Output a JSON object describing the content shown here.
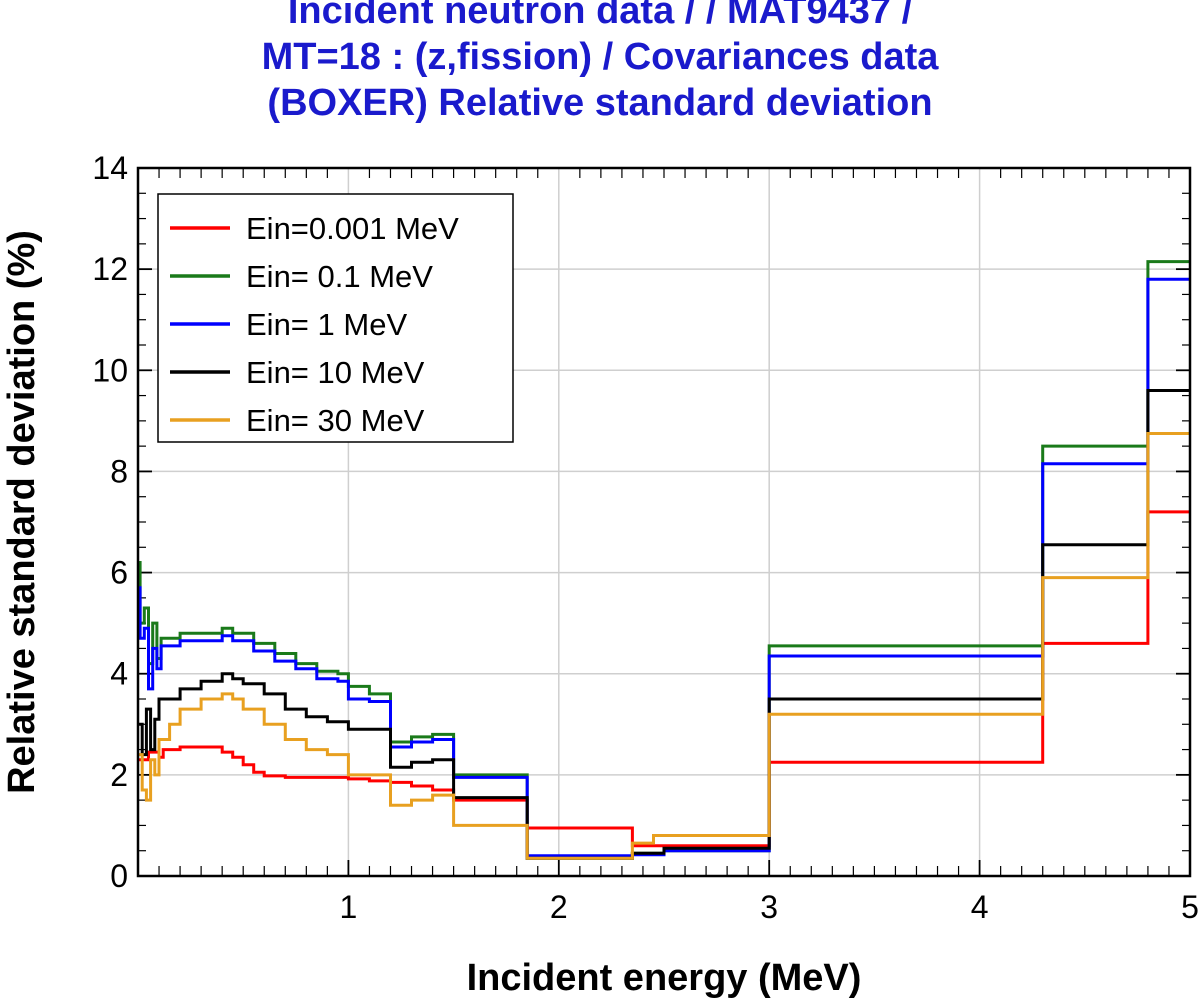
{
  "title_lines": [
    "Incident neutron data / / MAT9437 /",
    "MT=18 : (z,fission) / Covariances data",
    "(BOXER) Relative standard deviation"
  ],
  "colors": {
    "title": "#1a1acc",
    "grid": "#cfcfcf",
    "axis": "#000000"
  },
  "chart_data": {
    "type": "line",
    "title": "Incident neutron data / / MAT9437 / MT=18 : (z,fission) / Covariances data (BOXER) Relative standard deviation",
    "xlabel": "Incident energy (MeV)",
    "ylabel": "Relative standard deviation (%)",
    "xlim": [
      0,
      5
    ],
    "ylim": [
      0,
      14
    ],
    "xticks": [
      1,
      2,
      3,
      4,
      5
    ],
    "yticks": [
      0,
      2,
      4,
      6,
      8,
      10,
      12,
      14
    ],
    "grid": true,
    "legend_position": "top-left",
    "series": [
      {
        "name": "Ein=0.001 MeV",
        "color": "#ff0000",
        "points": [
          [
            0,
            2.3
          ],
          [
            0.05,
            2.3
          ],
          [
            0.05,
            2.45
          ],
          [
            0.1,
            2.45
          ],
          [
            0.1,
            2.35
          ],
          [
            0.12,
            2.35
          ],
          [
            0.12,
            2.5
          ],
          [
            0.2,
            2.5
          ],
          [
            0.2,
            2.55
          ],
          [
            0.4,
            2.55
          ],
          [
            0.4,
            2.45
          ],
          [
            0.45,
            2.45
          ],
          [
            0.45,
            2.35
          ],
          [
            0.5,
            2.35
          ],
          [
            0.5,
            2.2
          ],
          [
            0.55,
            2.2
          ],
          [
            0.55,
            2.05
          ],
          [
            0.6,
            2.05
          ],
          [
            0.6,
            1.98
          ],
          [
            0.7,
            1.98
          ],
          [
            0.7,
            1.95
          ],
          [
            1.0,
            1.95
          ],
          [
            1.0,
            1.92
          ],
          [
            1.1,
            1.92
          ],
          [
            1.1,
            1.88
          ],
          [
            1.2,
            1.88
          ],
          [
            1.2,
            1.85
          ],
          [
            1.3,
            1.85
          ],
          [
            1.3,
            1.78
          ],
          [
            1.4,
            1.78
          ],
          [
            1.4,
            1.7
          ],
          [
            1.5,
            1.7
          ],
          [
            1.5,
            1.5
          ],
          [
            1.85,
            1.5
          ],
          [
            1.85,
            0.95
          ],
          [
            2.35,
            0.95
          ],
          [
            2.35,
            0.6
          ],
          [
            3.0,
            0.6
          ],
          [
            3.0,
            2.25
          ],
          [
            4.3,
            2.25
          ],
          [
            4.3,
            4.6
          ],
          [
            4.8,
            4.6
          ],
          [
            4.8,
            7.2
          ],
          [
            5.0,
            7.2
          ]
        ]
      },
      {
        "name": "Ein= 0.1 MeV",
        "color": "#1a7a1a",
        "points": [
          [
            0,
            6.2
          ],
          [
            0.01,
            6.2
          ],
          [
            0.01,
            5.0
          ],
          [
            0.03,
            5.0
          ],
          [
            0.03,
            5.3
          ],
          [
            0.05,
            5.3
          ],
          [
            0.05,
            4.2
          ],
          [
            0.07,
            4.2
          ],
          [
            0.07,
            5.0
          ],
          [
            0.09,
            5.0
          ],
          [
            0.09,
            4.3
          ],
          [
            0.11,
            4.3
          ],
          [
            0.11,
            4.7
          ],
          [
            0.2,
            4.7
          ],
          [
            0.2,
            4.8
          ],
          [
            0.4,
            4.8
          ],
          [
            0.4,
            4.9
          ],
          [
            0.45,
            4.9
          ],
          [
            0.45,
            4.8
          ],
          [
            0.55,
            4.8
          ],
          [
            0.55,
            4.6
          ],
          [
            0.65,
            4.6
          ],
          [
            0.65,
            4.4
          ],
          [
            0.75,
            4.4
          ],
          [
            0.75,
            4.2
          ],
          [
            0.85,
            4.2
          ],
          [
            0.85,
            4.05
          ],
          [
            0.95,
            4.05
          ],
          [
            0.95,
            4.0
          ],
          [
            1.0,
            4.0
          ],
          [
            1.0,
            3.75
          ],
          [
            1.1,
            3.75
          ],
          [
            1.1,
            3.6
          ],
          [
            1.2,
            3.6
          ],
          [
            1.2,
            2.65
          ],
          [
            1.3,
            2.65
          ],
          [
            1.3,
            2.75
          ],
          [
            1.4,
            2.75
          ],
          [
            1.4,
            2.8
          ],
          [
            1.5,
            2.8
          ],
          [
            1.5,
            2.0
          ],
          [
            1.85,
            2.0
          ],
          [
            1.85,
            0.35
          ],
          [
            2.35,
            0.35
          ],
          [
            2.35,
            0.45
          ],
          [
            2.5,
            0.45
          ],
          [
            2.5,
            0.5
          ],
          [
            3.0,
            0.5
          ],
          [
            3.0,
            4.55
          ],
          [
            4.3,
            4.55
          ],
          [
            4.3,
            8.5
          ],
          [
            4.8,
            8.5
          ],
          [
            4.8,
            12.15
          ],
          [
            5.0,
            12.15
          ]
        ]
      },
      {
        "name": "Ein= 1 MeV",
        "color": "#0000ff",
        "points": [
          [
            0,
            5.7
          ],
          [
            0.01,
            5.7
          ],
          [
            0.01,
            4.7
          ],
          [
            0.03,
            4.7
          ],
          [
            0.03,
            4.9
          ],
          [
            0.05,
            4.9
          ],
          [
            0.05,
            3.7
          ],
          [
            0.07,
            3.7
          ],
          [
            0.07,
            4.5
          ],
          [
            0.09,
            4.5
          ],
          [
            0.09,
            4.1
          ],
          [
            0.11,
            4.1
          ],
          [
            0.11,
            4.55
          ],
          [
            0.2,
            4.55
          ],
          [
            0.2,
            4.65
          ],
          [
            0.4,
            4.65
          ],
          [
            0.4,
            4.75
          ],
          [
            0.45,
            4.75
          ],
          [
            0.45,
            4.65
          ],
          [
            0.55,
            4.65
          ],
          [
            0.55,
            4.45
          ],
          [
            0.65,
            4.45
          ],
          [
            0.65,
            4.25
          ],
          [
            0.75,
            4.25
          ],
          [
            0.75,
            4.1
          ],
          [
            0.85,
            4.1
          ],
          [
            0.85,
            3.9
          ],
          [
            0.95,
            3.9
          ],
          [
            0.95,
            3.85
          ],
          [
            1.0,
            3.85
          ],
          [
            1.0,
            3.5
          ],
          [
            1.1,
            3.5
          ],
          [
            1.1,
            3.45
          ],
          [
            1.2,
            3.45
          ],
          [
            1.2,
            2.55
          ],
          [
            1.3,
            2.55
          ],
          [
            1.3,
            2.65
          ],
          [
            1.4,
            2.65
          ],
          [
            1.4,
            2.7
          ],
          [
            1.5,
            2.7
          ],
          [
            1.5,
            1.95
          ],
          [
            1.85,
            1.95
          ],
          [
            1.85,
            0.4
          ],
          [
            2.35,
            0.4
          ],
          [
            2.35,
            0.42
          ],
          [
            2.5,
            0.42
          ],
          [
            2.5,
            0.5
          ],
          [
            3.0,
            0.5
          ],
          [
            3.0,
            4.35
          ],
          [
            4.3,
            4.35
          ],
          [
            4.3,
            8.15
          ],
          [
            4.8,
            8.15
          ],
          [
            4.8,
            11.8
          ],
          [
            5.0,
            11.8
          ]
        ]
      },
      {
        "name": "Ein= 10 MeV",
        "color": "#000000",
        "points": [
          [
            0,
            3.0
          ],
          [
            0.02,
            3.0
          ],
          [
            0.02,
            2.4
          ],
          [
            0.04,
            2.4
          ],
          [
            0.04,
            3.3
          ],
          [
            0.06,
            3.3
          ],
          [
            0.06,
            2.5
          ],
          [
            0.08,
            2.5
          ],
          [
            0.08,
            3.1
          ],
          [
            0.1,
            3.1
          ],
          [
            0.1,
            3.5
          ],
          [
            0.2,
            3.5
          ],
          [
            0.2,
            3.7
          ],
          [
            0.3,
            3.7
          ],
          [
            0.3,
            3.85
          ],
          [
            0.4,
            3.85
          ],
          [
            0.4,
            4.0
          ],
          [
            0.45,
            4.0
          ],
          [
            0.45,
            3.9
          ],
          [
            0.5,
            3.9
          ],
          [
            0.5,
            3.8
          ],
          [
            0.6,
            3.8
          ],
          [
            0.6,
            3.6
          ],
          [
            0.7,
            3.6
          ],
          [
            0.7,
            3.3
          ],
          [
            0.8,
            3.3
          ],
          [
            0.8,
            3.15
          ],
          [
            0.9,
            3.15
          ],
          [
            0.9,
            3.05
          ],
          [
            1.0,
            3.05
          ],
          [
            1.0,
            2.9
          ],
          [
            1.2,
            2.9
          ],
          [
            1.2,
            2.15
          ],
          [
            1.3,
            2.15
          ],
          [
            1.3,
            2.25
          ],
          [
            1.4,
            2.25
          ],
          [
            1.4,
            2.3
          ],
          [
            1.5,
            2.3
          ],
          [
            1.5,
            1.55
          ],
          [
            1.85,
            1.55
          ],
          [
            1.85,
            0.35
          ],
          [
            2.35,
            0.35
          ],
          [
            2.35,
            0.45
          ],
          [
            2.5,
            0.45
          ],
          [
            2.5,
            0.55
          ],
          [
            3.0,
            0.55
          ],
          [
            3.0,
            3.5
          ],
          [
            4.3,
            3.5
          ],
          [
            4.3,
            6.55
          ],
          [
            4.8,
            6.55
          ],
          [
            4.8,
            9.6
          ],
          [
            5.0,
            9.6
          ]
        ]
      },
      {
        "name": "Ein= 30 MeV",
        "color": "#e8a020",
        "points": [
          [
            0,
            2.4
          ],
          [
            0.02,
            2.4
          ],
          [
            0.02,
            1.7
          ],
          [
            0.04,
            1.7
          ],
          [
            0.04,
            1.5
          ],
          [
            0.06,
            1.5
          ],
          [
            0.06,
            2.3
          ],
          [
            0.08,
            2.3
          ],
          [
            0.08,
            2.0
          ],
          [
            0.1,
            2.0
          ],
          [
            0.1,
            2.7
          ],
          [
            0.15,
            2.7
          ],
          [
            0.15,
            3.0
          ],
          [
            0.2,
            3.0
          ],
          [
            0.2,
            3.3
          ],
          [
            0.3,
            3.3
          ],
          [
            0.3,
            3.5
          ],
          [
            0.4,
            3.5
          ],
          [
            0.4,
            3.6
          ],
          [
            0.45,
            3.6
          ],
          [
            0.45,
            3.5
          ],
          [
            0.5,
            3.5
          ],
          [
            0.5,
            3.3
          ],
          [
            0.6,
            3.3
          ],
          [
            0.6,
            3.0
          ],
          [
            0.7,
            3.0
          ],
          [
            0.7,
            2.7
          ],
          [
            0.8,
            2.7
          ],
          [
            0.8,
            2.5
          ],
          [
            0.9,
            2.5
          ],
          [
            0.9,
            2.4
          ],
          [
            1.0,
            2.4
          ],
          [
            1.0,
            2.0
          ],
          [
            1.2,
            2.0
          ],
          [
            1.2,
            1.4
          ],
          [
            1.3,
            1.4
          ],
          [
            1.3,
            1.5
          ],
          [
            1.4,
            1.5
          ],
          [
            1.4,
            1.6
          ],
          [
            1.5,
            1.6
          ],
          [
            1.5,
            1.0
          ],
          [
            1.85,
            1.0
          ],
          [
            1.85,
            0.35
          ],
          [
            2.35,
            0.35
          ],
          [
            2.35,
            0.65
          ],
          [
            2.45,
            0.65
          ],
          [
            2.45,
            0.8
          ],
          [
            3.0,
            0.8
          ],
          [
            3.0,
            3.2
          ],
          [
            4.3,
            3.2
          ],
          [
            4.3,
            5.9
          ],
          [
            4.8,
            5.9
          ],
          [
            4.8,
            8.75
          ],
          [
            5.0,
            8.75
          ]
        ]
      }
    ]
  }
}
